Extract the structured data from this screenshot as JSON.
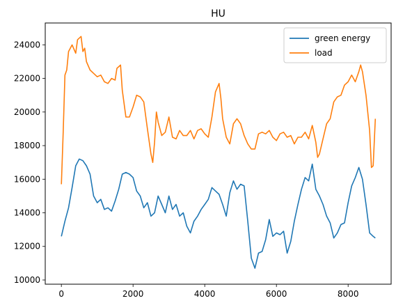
{
  "chart_data": {
    "type": "line",
    "title": "HU",
    "xlabel": "",
    "ylabel": "",
    "xlim": [
      -450,
      9200
    ],
    "ylim": [
      9750,
      25300
    ],
    "xticks": [
      0,
      2000,
      4000,
      6000,
      8000
    ],
    "yticks": [
      10000,
      12000,
      14000,
      16000,
      18000,
      20000,
      22000,
      24000
    ],
    "grid": false,
    "legend": "top-right",
    "series": [
      {
        "name": "green energy",
        "color": "#1f77b4",
        "points": [
          [
            0,
            12600
          ],
          [
            100,
            13500
          ],
          [
            200,
            14300
          ],
          [
            300,
            15500
          ],
          [
            400,
            16800
          ],
          [
            500,
            17200
          ],
          [
            600,
            17100
          ],
          [
            700,
            16800
          ],
          [
            800,
            16300
          ],
          [
            900,
            15000
          ],
          [
            1000,
            14600
          ],
          [
            1100,
            14800
          ],
          [
            1200,
            14200
          ],
          [
            1300,
            14300
          ],
          [
            1400,
            14100
          ],
          [
            1500,
            14700
          ],
          [
            1600,
            15400
          ],
          [
            1700,
            16300
          ],
          [
            1800,
            16400
          ],
          [
            1900,
            16300
          ],
          [
            2000,
            16100
          ],
          [
            2100,
            15300
          ],
          [
            2200,
            15000
          ],
          [
            2300,
            14300
          ],
          [
            2400,
            14600
          ],
          [
            2500,
            13800
          ],
          [
            2600,
            14000
          ],
          [
            2700,
            15000
          ],
          [
            2800,
            14500
          ],
          [
            2900,
            14000
          ],
          [
            3000,
            15000
          ],
          [
            3100,
            14200
          ],
          [
            3200,
            14500
          ],
          [
            3300,
            13800
          ],
          [
            3400,
            14000
          ],
          [
            3500,
            13200
          ],
          [
            3600,
            12800
          ],
          [
            3700,
            13500
          ],
          [
            3800,
            13800
          ],
          [
            3900,
            14200
          ],
          [
            4000,
            14500
          ],
          [
            4100,
            14800
          ],
          [
            4200,
            15500
          ],
          [
            4300,
            15300
          ],
          [
            4400,
            15100
          ],
          [
            4500,
            14500
          ],
          [
            4600,
            13800
          ],
          [
            4700,
            15200
          ],
          [
            4800,
            15900
          ],
          [
            4900,
            15400
          ],
          [
            5000,
            15700
          ],
          [
            5100,
            15600
          ],
          [
            5200,
            13500
          ],
          [
            5300,
            11300
          ],
          [
            5400,
            10700
          ],
          [
            5500,
            11600
          ],
          [
            5600,
            11700
          ],
          [
            5700,
            12400
          ],
          [
            5800,
            13600
          ],
          [
            5900,
            12600
          ],
          [
            6000,
            12800
          ],
          [
            6100,
            12700
          ],
          [
            6200,
            12900
          ],
          [
            6300,
            11600
          ],
          [
            6400,
            12300
          ],
          [
            6500,
            13500
          ],
          [
            6600,
            14500
          ],
          [
            6700,
            15400
          ],
          [
            6800,
            16100
          ],
          [
            6900,
            15900
          ],
          [
            7000,
            16900
          ],
          [
            7100,
            15400
          ],
          [
            7200,
            15000
          ],
          [
            7300,
            14500
          ],
          [
            7400,
            13800
          ],
          [
            7500,
            13400
          ],
          [
            7600,
            12500
          ],
          [
            7700,
            12800
          ],
          [
            7800,
            13300
          ],
          [
            7900,
            13400
          ],
          [
            8000,
            14600
          ],
          [
            8100,
            15600
          ],
          [
            8200,
            16100
          ],
          [
            8300,
            16700
          ],
          [
            8400,
            16000
          ],
          [
            8500,
            14500
          ],
          [
            8600,
            12800
          ],
          [
            8700,
            12600
          ],
          [
            8760,
            12500
          ]
        ]
      },
      {
        "name": "load",
        "color": "#ff7f0e",
        "points": [
          [
            0,
            15700
          ],
          [
            50,
            18800
          ],
          [
            100,
            22200
          ],
          [
            150,
            22500
          ],
          [
            200,
            23600
          ],
          [
            300,
            24000
          ],
          [
            400,
            23500
          ],
          [
            450,
            24300
          ],
          [
            550,
            24500
          ],
          [
            600,
            23600
          ],
          [
            650,
            23800
          ],
          [
            700,
            23000
          ],
          [
            800,
            22500
          ],
          [
            900,
            22300
          ],
          [
            1000,
            22100
          ],
          [
            1100,
            22200
          ],
          [
            1200,
            21800
          ],
          [
            1300,
            21700
          ],
          [
            1400,
            22000
          ],
          [
            1500,
            21900
          ],
          [
            1550,
            22600
          ],
          [
            1650,
            22800
          ],
          [
            1700,
            21300
          ],
          [
            1800,
            19700
          ],
          [
            1900,
            19700
          ],
          [
            2000,
            20300
          ],
          [
            2100,
            21000
          ],
          [
            2200,
            20900
          ],
          [
            2300,
            20600
          ],
          [
            2400,
            19000
          ],
          [
            2500,
            17500
          ],
          [
            2550,
            17000
          ],
          [
            2600,
            18200
          ],
          [
            2650,
            20000
          ],
          [
            2700,
            19400
          ],
          [
            2800,
            18600
          ],
          [
            2900,
            18800
          ],
          [
            3000,
            19700
          ],
          [
            3100,
            18500
          ],
          [
            3200,
            18400
          ],
          [
            3300,
            18900
          ],
          [
            3400,
            18600
          ],
          [
            3500,
            18600
          ],
          [
            3600,
            18900
          ],
          [
            3700,
            18400
          ],
          [
            3800,
            18900
          ],
          [
            3900,
            19000
          ],
          [
            4000,
            18700
          ],
          [
            4100,
            18500
          ],
          [
            4200,
            19700
          ],
          [
            4300,
            21200
          ],
          [
            4400,
            21700
          ],
          [
            4450,
            20800
          ],
          [
            4500,
            19600
          ],
          [
            4600,
            18500
          ],
          [
            4700,
            18100
          ],
          [
            4800,
            19300
          ],
          [
            4900,
            19600
          ],
          [
            5000,
            19300
          ],
          [
            5100,
            18600
          ],
          [
            5200,
            18100
          ],
          [
            5300,
            17800
          ],
          [
            5400,
            17800
          ],
          [
            5500,
            18700
          ],
          [
            5600,
            18800
          ],
          [
            5700,
            18700
          ],
          [
            5800,
            18900
          ],
          [
            5900,
            18500
          ],
          [
            6000,
            18300
          ],
          [
            6100,
            18700
          ],
          [
            6200,
            18800
          ],
          [
            6300,
            18500
          ],
          [
            6400,
            18600
          ],
          [
            6500,
            18100
          ],
          [
            6600,
            18500
          ],
          [
            6700,
            18500
          ],
          [
            6800,
            18800
          ],
          [
            6900,
            18400
          ],
          [
            7000,
            19200
          ],
          [
            7100,
            18200
          ],
          [
            7150,
            17300
          ],
          [
            7200,
            17500
          ],
          [
            7300,
            18400
          ],
          [
            7400,
            19300
          ],
          [
            7500,
            19600
          ],
          [
            7600,
            20600
          ],
          [
            7700,
            20900
          ],
          [
            7800,
            21000
          ],
          [
            7900,
            21600
          ],
          [
            8000,
            21800
          ],
          [
            8100,
            22200
          ],
          [
            8200,
            21800
          ],
          [
            8300,
            22400
          ],
          [
            8350,
            22800
          ],
          [
            8400,
            22400
          ],
          [
            8500,
            21000
          ],
          [
            8600,
            18900
          ],
          [
            8650,
            16700
          ],
          [
            8700,
            16800
          ],
          [
            8760,
            19600
          ]
        ]
      }
    ]
  }
}
